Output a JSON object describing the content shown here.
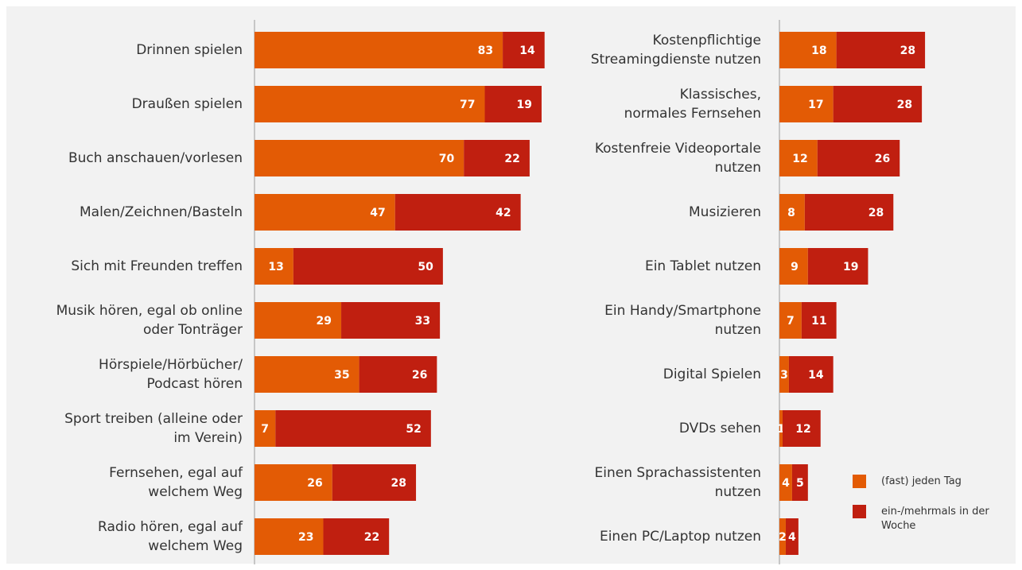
{
  "chart_data": [
    {
      "type": "bar",
      "orientation": "horizontal",
      "stacked": true,
      "categories": [
        "Drinnen spielen",
        "Draußen spielen",
        "Buch anschauen/vorlesen",
        "Malen/Zeichnen/Basteln",
        "Sich mit Freunden treffen",
        "Musik hören, egal ob online\noder Tonträger",
        "Hörspiele/Hörbücher/\nPodcast hören",
        "Sport treiben (alleine oder\nim Verein)",
        "Fernsehen, egal auf\nwelchem Weg",
        "Radio hören, egal auf\nwelchem Weg"
      ],
      "series": [
        {
          "name": "(fast) jeden Tag",
          "color": "#e35b05",
          "values": [
            83,
            77,
            70,
            47,
            13,
            29,
            35,
            7,
            26,
            23
          ]
        },
        {
          "name": "ein-/mehrmals in der\nWoche",
          "color": "#c01f10",
          "values": [
            14,
            19,
            22,
            42,
            50,
            33,
            26,
            52,
            28,
            22
          ]
        }
      ],
      "xlim": [
        0,
        100
      ]
    },
    {
      "type": "bar",
      "orientation": "horizontal",
      "stacked": true,
      "categories": [
        "Kostenpflichtige\nStreamingdienste nutzen",
        "Klassisches,\nnormales Fernsehen",
        "Kostenfreie Videoportale\nnutzen",
        "Musizieren",
        "Ein Tablet nutzen",
        "Ein Handy/Smartphone\nnutzen",
        "Digital Spielen",
        "DVDs sehen",
        "Einen Sprachassistenten\nnutzen",
        "Einen PC/Laptop nutzen"
      ],
      "series": [
        {
          "name": "(fast) jeden Tag",
          "color": "#e35b05",
          "values": [
            18,
            17,
            12,
            8,
            9,
            7,
            3,
            1,
            4,
            2
          ]
        },
        {
          "name": "ein-/mehrmals in der\nWoche",
          "color": "#c01f10",
          "values": [
            28,
            28,
            26,
            28,
            19,
            11,
            14,
            12,
            5,
            4
          ]
        }
      ],
      "xlim": [
        0,
        100
      ],
      "legend": "bottom-right"
    }
  ]
}
